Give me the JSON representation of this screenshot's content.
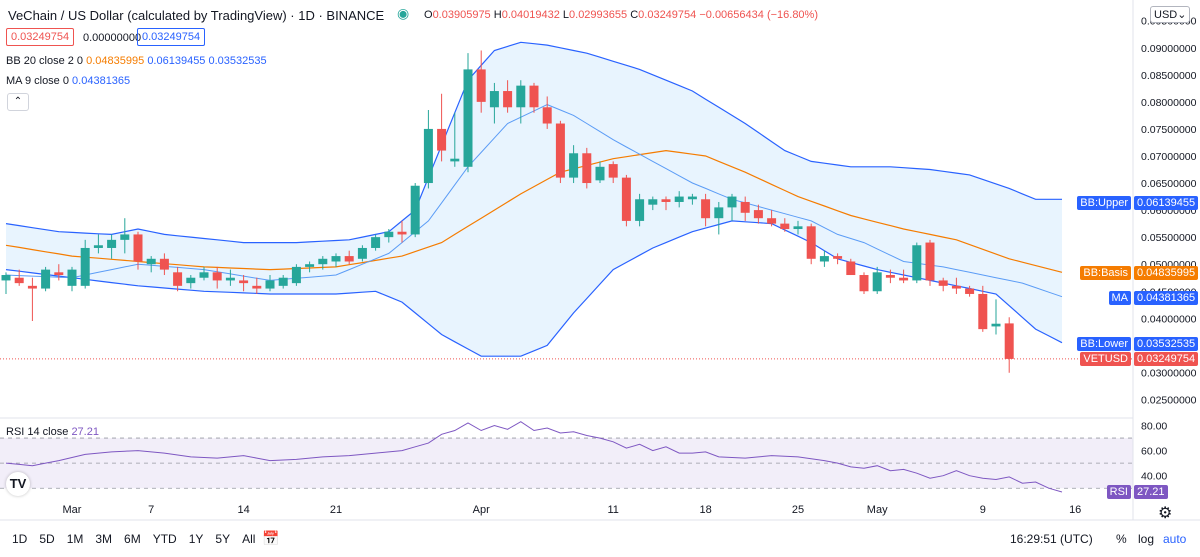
{
  "header": {
    "title": "VeChain / US Dollar (calculated by TradingView) · 1D · BINANCE",
    "ohlc": {
      "o_label": "O",
      "o": "0.03905975",
      "h_label": "H",
      "h": "0.04019432",
      "l_label": "L",
      "l": "0.02993655",
      "c_label": "C",
      "c": "0.03249754",
      "change": "−0.00656434 (−16.80%)"
    },
    "bid": "0.03249754",
    "spread": "0.00000000",
    "ask": "0.03249754",
    "bb_label": "BB 20 close 2 0",
    "bb_basis": "0.04835995",
    "bb_upper": "0.06139455",
    "bb_lower": "0.03532535",
    "ma_label": "MA 9 close 0",
    "ma_value": "0.04381365",
    "rsi_label": "RSI 14 close",
    "rsi_value": "27.21",
    "currency": "USD"
  },
  "colors": {
    "up": "#26a69a",
    "down": "#ef5350",
    "bb": "#2962ff",
    "basis": "#f57c00",
    "ma": "#5b9cf6",
    "rsi": "#7e57c2"
  },
  "axis_badges": [
    {
      "name": "BB:Upper",
      "value": "0.06139455",
      "price": 0.06139455,
      "color": "#2962ff"
    },
    {
      "name": "BB:Basis",
      "value": "0.04835995",
      "price": 0.04835995,
      "color": "#f57c00"
    },
    {
      "name": "MA",
      "value": "0.04381365",
      "price": 0.04381365,
      "color": "#2962ff"
    },
    {
      "name": "BB:Lower",
      "value": "0.03532535",
      "price": 0.03532535,
      "color": "#2962ff"
    },
    {
      "name": "VETUSD",
      "value": "0.03249754",
      "price": 0.03249754,
      "color": "#ef5350"
    }
  ],
  "rsi_badge": {
    "name": "RSI",
    "value": "27.21"
  },
  "timeframes": [
    "1D",
    "5D",
    "1M",
    "3M",
    "6M",
    "YTD",
    "1Y",
    "5Y",
    "All"
  ],
  "clock": "16:29:51 (UTC)",
  "bottom_right": {
    "percent": "%",
    "log": "log",
    "auto": "auto"
  },
  "chart_data": {
    "type": "candlestick",
    "price_ticks": [
      "0.09500000",
      "0.09000000",
      "0.08500000",
      "0.08000000",
      "0.07500000",
      "0.07000000",
      "0.06500000",
      "0.06000000",
      "0.05500000",
      "0.05000000",
      "0.04500000",
      "0.04000000",
      "0.03500000",
      "0.03000000",
      "0.02500000"
    ],
    "price_range": [
      0.0225,
      0.0955
    ],
    "rsi_ticks": [
      "80.00",
      "60.00",
      "40.00"
    ],
    "rsi_range": [
      27,
      82
    ],
    "x_labels": [
      {
        "label": "Mar",
        "i": 5
      },
      {
        "label": "7",
        "i": 11
      },
      {
        "label": "14",
        "i": 18
      },
      {
        "label": "21",
        "i": 25
      },
      {
        "label": "Apr",
        "i": 36
      },
      {
        "label": "11",
        "i": 46
      },
      {
        "label": "18",
        "i": 53
      },
      {
        "label": "25",
        "i": 60
      },
      {
        "label": "May",
        "i": 66
      },
      {
        "label": "9",
        "i": 74
      },
      {
        "label": "16",
        "i": 81
      }
    ],
    "candles": [
      {
        "o": 0.047,
        "h": 0.0485,
        "l": 0.0445,
        "c": 0.048
      },
      {
        "o": 0.0475,
        "h": 0.049,
        "l": 0.046,
        "c": 0.0465
      },
      {
        "o": 0.046,
        "h": 0.0475,
        "l": 0.0395,
        "c": 0.0455
      },
      {
        "o": 0.0455,
        "h": 0.0495,
        "l": 0.045,
        "c": 0.049
      },
      {
        "o": 0.0485,
        "h": 0.05,
        "l": 0.047,
        "c": 0.048
      },
      {
        "o": 0.046,
        "h": 0.0495,
        "l": 0.045,
        "c": 0.049
      },
      {
        "o": 0.046,
        "h": 0.0545,
        "l": 0.0455,
        "c": 0.053
      },
      {
        "o": 0.053,
        "h": 0.0555,
        "l": 0.052,
        "c": 0.0535
      },
      {
        "o": 0.053,
        "h": 0.0555,
        "l": 0.051,
        "c": 0.0545
      },
      {
        "o": 0.0545,
        "h": 0.0585,
        "l": 0.052,
        "c": 0.0555
      },
      {
        "o": 0.0555,
        "h": 0.056,
        "l": 0.049,
        "c": 0.0505
      },
      {
        "o": 0.05,
        "h": 0.0515,
        "l": 0.0485,
        "c": 0.051
      },
      {
        "o": 0.051,
        "h": 0.052,
        "l": 0.048,
        "c": 0.049
      },
      {
        "o": 0.0485,
        "h": 0.0495,
        "l": 0.045,
        "c": 0.046
      },
      {
        "o": 0.0465,
        "h": 0.048,
        "l": 0.0455,
        "c": 0.0475
      },
      {
        "o": 0.0475,
        "h": 0.0495,
        "l": 0.047,
        "c": 0.0485
      },
      {
        "o": 0.0485,
        "h": 0.0495,
        "l": 0.0455,
        "c": 0.047
      },
      {
        "o": 0.047,
        "h": 0.049,
        "l": 0.046,
        "c": 0.0475
      },
      {
        "o": 0.047,
        "h": 0.048,
        "l": 0.045,
        "c": 0.0465
      },
      {
        "o": 0.046,
        "h": 0.0475,
        "l": 0.0445,
        "c": 0.0455
      },
      {
        "o": 0.0455,
        "h": 0.048,
        "l": 0.045,
        "c": 0.047
      },
      {
        "o": 0.046,
        "h": 0.048,
        "l": 0.0455,
        "c": 0.0475
      },
      {
        "o": 0.0465,
        "h": 0.05,
        "l": 0.046,
        "c": 0.0495
      },
      {
        "o": 0.0495,
        "h": 0.0505,
        "l": 0.0485,
        "c": 0.05
      },
      {
        "o": 0.05,
        "h": 0.0515,
        "l": 0.049,
        "c": 0.051
      },
      {
        "o": 0.0505,
        "h": 0.052,
        "l": 0.0495,
        "c": 0.0515
      },
      {
        "o": 0.0515,
        "h": 0.0525,
        "l": 0.05,
        "c": 0.0505
      },
      {
        "o": 0.051,
        "h": 0.0535,
        "l": 0.0505,
        "c": 0.053
      },
      {
        "o": 0.053,
        "h": 0.0555,
        "l": 0.0525,
        "c": 0.055
      },
      {
        "o": 0.055,
        "h": 0.0565,
        "l": 0.054,
        "c": 0.056
      },
      {
        "o": 0.056,
        "h": 0.058,
        "l": 0.054,
        "c": 0.0555
      },
      {
        "o": 0.0555,
        "h": 0.065,
        "l": 0.055,
        "c": 0.0645
      },
      {
        "o": 0.065,
        "h": 0.0785,
        "l": 0.064,
        "c": 0.075
      },
      {
        "o": 0.075,
        "h": 0.0815,
        "l": 0.069,
        "c": 0.071
      },
      {
        "o": 0.069,
        "h": 0.078,
        "l": 0.068,
        "c": 0.0695
      },
      {
        "o": 0.068,
        "h": 0.089,
        "l": 0.067,
        "c": 0.086
      },
      {
        "o": 0.086,
        "h": 0.0895,
        "l": 0.078,
        "c": 0.08
      },
      {
        "o": 0.079,
        "h": 0.0835,
        "l": 0.076,
        "c": 0.082
      },
      {
        "o": 0.082,
        "h": 0.084,
        "l": 0.078,
        "c": 0.079
      },
      {
        "o": 0.079,
        "h": 0.084,
        "l": 0.076,
        "c": 0.083
      },
      {
        "o": 0.083,
        "h": 0.0835,
        "l": 0.078,
        "c": 0.079
      },
      {
        "o": 0.079,
        "h": 0.081,
        "l": 0.075,
        "c": 0.076
      },
      {
        "o": 0.076,
        "h": 0.0765,
        "l": 0.065,
        "c": 0.066
      },
      {
        "o": 0.066,
        "h": 0.072,
        "l": 0.065,
        "c": 0.0705
      },
      {
        "o": 0.0705,
        "h": 0.0715,
        "l": 0.064,
        "c": 0.065
      },
      {
        "o": 0.0655,
        "h": 0.069,
        "l": 0.065,
        "c": 0.068
      },
      {
        "o": 0.0685,
        "h": 0.069,
        "l": 0.065,
        "c": 0.066
      },
      {
        "o": 0.066,
        "h": 0.0665,
        "l": 0.057,
        "c": 0.058
      },
      {
        "o": 0.058,
        "h": 0.063,
        "l": 0.057,
        "c": 0.062
      },
      {
        "o": 0.061,
        "h": 0.0625,
        "l": 0.06,
        "c": 0.062
      },
      {
        "o": 0.062,
        "h": 0.0625,
        "l": 0.06,
        "c": 0.0615
      },
      {
        "o": 0.0615,
        "h": 0.0635,
        "l": 0.0605,
        "c": 0.0625
      },
      {
        "o": 0.062,
        "h": 0.063,
        "l": 0.061,
        "c": 0.0625
      },
      {
        "o": 0.062,
        "h": 0.063,
        "l": 0.057,
        "c": 0.0585
      },
      {
        "o": 0.0585,
        "h": 0.0615,
        "l": 0.0555,
        "c": 0.0605
      },
      {
        "o": 0.0605,
        "h": 0.063,
        "l": 0.058,
        "c": 0.0625
      },
      {
        "o": 0.0615,
        "h": 0.0625,
        "l": 0.058,
        "c": 0.0595
      },
      {
        "o": 0.06,
        "h": 0.061,
        "l": 0.0575,
        "c": 0.0585
      },
      {
        "o": 0.0585,
        "h": 0.06,
        "l": 0.057,
        "c": 0.0575
      },
      {
        "o": 0.0575,
        "h": 0.0585,
        "l": 0.056,
        "c": 0.0565
      },
      {
        "o": 0.0565,
        "h": 0.058,
        "l": 0.0555,
        "c": 0.057
      },
      {
        "o": 0.057,
        "h": 0.0575,
        "l": 0.05,
        "c": 0.051
      },
      {
        "o": 0.0505,
        "h": 0.0525,
        "l": 0.0495,
        "c": 0.0515
      },
      {
        "o": 0.0515,
        "h": 0.052,
        "l": 0.05,
        "c": 0.051
      },
      {
        "o": 0.0505,
        "h": 0.051,
        "l": 0.048,
        "c": 0.048
      },
      {
        "o": 0.048,
        "h": 0.0485,
        "l": 0.0445,
        "c": 0.045
      },
      {
        "o": 0.045,
        "h": 0.0495,
        "l": 0.0445,
        "c": 0.0485
      },
      {
        "o": 0.048,
        "h": 0.049,
        "l": 0.0465,
        "c": 0.0475
      },
      {
        "o": 0.0475,
        "h": 0.049,
        "l": 0.0465,
        "c": 0.047
      },
      {
        "o": 0.047,
        "h": 0.054,
        "l": 0.0465,
        "c": 0.0535
      },
      {
        "o": 0.054,
        "h": 0.0545,
        "l": 0.046,
        "c": 0.047
      },
      {
        "o": 0.047,
        "h": 0.0475,
        "l": 0.045,
        "c": 0.046
      },
      {
        "o": 0.046,
        "h": 0.0475,
        "l": 0.0445,
        "c": 0.0455
      },
      {
        "o": 0.0455,
        "h": 0.046,
        "l": 0.044,
        "c": 0.0445
      },
      {
        "o": 0.0445,
        "h": 0.046,
        "l": 0.0375,
        "c": 0.038
      },
      {
        "o": 0.0385,
        "h": 0.0435,
        "l": 0.037,
        "c": 0.039
      },
      {
        "o": 0.0390598,
        "h": 0.0401943,
        "l": 0.0299366,
        "c": 0.0324975
      }
    ],
    "bb_upper": [
      [
        0,
        0.0575
      ],
      [
        4,
        0.056
      ],
      [
        8,
        0.0555
      ],
      [
        10,
        0.0565
      ],
      [
        12,
        0.0555
      ],
      [
        14,
        0.055
      ],
      [
        18,
        0.054
      ],
      [
        22,
        0.054
      ],
      [
        26,
        0.0545
      ],
      [
        29,
        0.056
      ],
      [
        31,
        0.06
      ],
      [
        33,
        0.072
      ],
      [
        35,
        0.084
      ],
      [
        37,
        0.0895
      ],
      [
        39,
        0.091
      ],
      [
        41,
        0.0905
      ],
      [
        44,
        0.089
      ],
      [
        48,
        0.086
      ],
      [
        52,
        0.082
      ],
      [
        56,
        0.076
      ],
      [
        59,
        0.071
      ],
      [
        61,
        0.069
      ],
      [
        64,
        0.068
      ],
      [
        67,
        0.068
      ],
      [
        70,
        0.0675
      ],
      [
        73,
        0.0665
      ],
      [
        76,
        0.064
      ],
      [
        78,
        0.062
      ],
      [
        80,
        0.062
      ]
    ],
    "bb_basis": [
      [
        0,
        0.0535
      ],
      [
        5,
        0.0515
      ],
      [
        10,
        0.0505
      ],
      [
        15,
        0.0495
      ],
      [
        20,
        0.049
      ],
      [
        25,
        0.0495
      ],
      [
        30,
        0.0515
      ],
      [
        33,
        0.054
      ],
      [
        36,
        0.0585
      ],
      [
        39,
        0.063
      ],
      [
        42,
        0.067
      ],
      [
        46,
        0.0695
      ],
      [
        50,
        0.071
      ],
      [
        53,
        0.07
      ],
      [
        56,
        0.067
      ],
      [
        60,
        0.0625
      ],
      [
        64,
        0.059
      ],
      [
        68,
        0.0565
      ],
      [
        72,
        0.0545
      ],
      [
        76,
        0.051
      ],
      [
        80,
        0.0485
      ]
    ],
    "bb_lower": [
      [
        0,
        0.049
      ],
      [
        5,
        0.0475
      ],
      [
        10,
        0.046
      ],
      [
        15,
        0.045
      ],
      [
        20,
        0.0445
      ],
      [
        25,
        0.0445
      ],
      [
        28,
        0.045
      ],
      [
        30,
        0.043
      ],
      [
        33,
        0.037
      ],
      [
        36,
        0.033
      ],
      [
        39,
        0.033
      ],
      [
        41,
        0.035
      ],
      [
        43,
        0.041
      ],
      [
        46,
        0.049
      ],
      [
        49,
        0.053
      ],
      [
        52,
        0.056
      ],
      [
        55,
        0.058
      ],
      [
        58,
        0.0575
      ],
      [
        61,
        0.054
      ],
      [
        63,
        0.051
      ],
      [
        66,
        0.049
      ],
      [
        69,
        0.0475
      ],
      [
        72,
        0.046
      ],
      [
        75,
        0.0445
      ],
      [
        78,
        0.038
      ],
      [
        80,
        0.0355
      ]
    ],
    "ma": [
      [
        0,
        0.048
      ],
      [
        5,
        0.0475
      ],
      [
        10,
        0.05
      ],
      [
        15,
        0.049
      ],
      [
        20,
        0.047
      ],
      [
        25,
        0.048
      ],
      [
        29,
        0.052
      ],
      [
        32,
        0.058
      ],
      [
        35,
        0.068
      ],
      [
        38,
        0.076
      ],
      [
        41,
        0.0795
      ],
      [
        43,
        0.0775
      ],
      [
        46,
        0.073
      ],
      [
        49,
        0.069
      ],
      [
        52,
        0.065
      ],
      [
        55,
        0.062
      ],
      [
        58,
        0.06
      ],
      [
        61,
        0.058
      ],
      [
        63,
        0.0555
      ],
      [
        65,
        0.054
      ],
      [
        68,
        0.0505
      ],
      [
        71,
        0.0495
      ],
      [
        74,
        0.048
      ],
      [
        77,
        0.0465
      ],
      [
        80,
        0.044
      ]
    ],
    "rsi": [
      [
        0,
        50
      ],
      [
        2,
        48
      ],
      [
        4,
        52
      ],
      [
        6,
        57
      ],
      [
        8,
        59
      ],
      [
        10,
        60
      ],
      [
        12,
        58
      ],
      [
        14,
        55
      ],
      [
        16,
        54
      ],
      [
        18,
        56
      ],
      [
        20,
        52
      ],
      [
        22,
        53
      ],
      [
        24,
        55
      ],
      [
        26,
        56
      ],
      [
        28,
        58
      ],
      [
        30,
        60
      ],
      [
        32,
        66
      ],
      [
        33,
        73
      ],
      [
        34,
        76
      ],
      [
        35,
        82
      ],
      [
        36,
        76
      ],
      [
        37,
        80
      ],
      [
        38,
        77
      ],
      [
        39,
        83
      ],
      [
        40,
        76
      ],
      [
        41,
        78
      ],
      [
        42,
        74
      ],
      [
        43,
        75
      ],
      [
        44,
        72
      ],
      [
        45,
        70
      ],
      [
        46,
        67
      ],
      [
        47,
        62
      ],
      [
        48,
        65
      ],
      [
        49,
        60
      ],
      [
        50,
        63
      ],
      [
        51,
        58
      ],
      [
        52,
        58
      ],
      [
        53,
        59
      ],
      [
        54,
        55
      ],
      [
        56,
        54
      ],
      [
        58,
        56
      ],
      [
        60,
        55
      ],
      [
        62,
        52
      ],
      [
        63,
        50
      ],
      [
        64,
        47
      ],
      [
        65,
        46
      ],
      [
        66,
        48
      ],
      [
        67,
        44
      ],
      [
        68,
        45
      ],
      [
        69,
        42
      ],
      [
        70,
        38
      ],
      [
        71,
        40
      ],
      [
        72,
        44
      ],
      [
        73,
        40
      ],
      [
        74,
        38
      ],
      [
        75,
        37
      ],
      [
        76,
        39
      ],
      [
        77,
        34
      ],
      [
        78,
        35
      ],
      [
        79,
        30
      ],
      [
        80,
        27
      ]
    ]
  }
}
